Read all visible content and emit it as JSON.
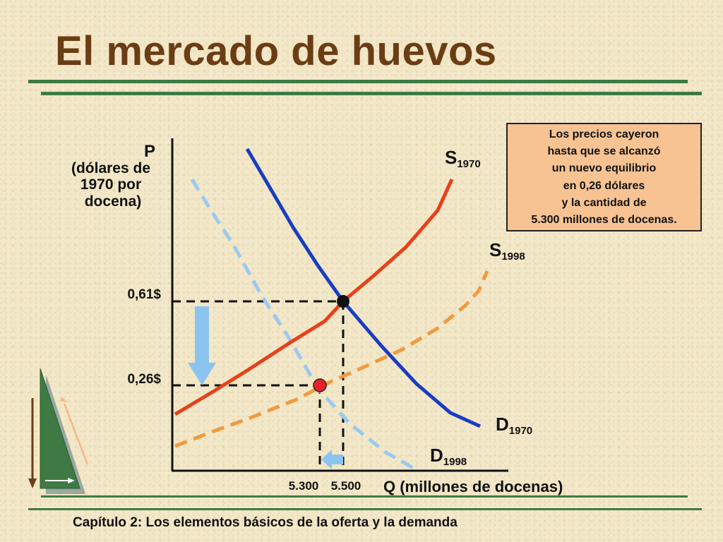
{
  "slide": {
    "title": "El mercado de huevos",
    "footer": "Capítulo 2: Los elementos básicos de la oferta y la demanda"
  },
  "diagram": {
    "y_axis": {
      "symbol": "P",
      "description_lines": [
        "(dólares de",
        "1970 por",
        "docena)"
      ]
    },
    "x_axis": {
      "label": "Q (millones de docenas)"
    },
    "price_ticks": [
      "0,61$",
      "0,26$"
    ],
    "quantity_ticks": [
      "5.300",
      "5.500"
    ],
    "curves": {
      "s1970": {
        "letter": "S",
        "sub": "1970"
      },
      "s1998": {
        "letter": "S",
        "sub": "1998"
      },
      "d1970": {
        "letter": "D",
        "sub": "1970"
      },
      "d1998": {
        "letter": "D",
        "sub": "1998"
      }
    },
    "callout_lines": [
      "Los precios cayeron",
      "hasta que se alcanzó",
      "un nuevo equilibrio",
      "en 0,26 dólares",
      "y la cantidad de",
      "5.300 millones de docenas."
    ]
  },
  "colors": {
    "title": "#6b3d14",
    "rule": "#3f7a44",
    "s1970": "#e8401a",
    "s1998": "#f29a3e",
    "d1970": "#1a3cc4",
    "d1998": "#9cc9f2",
    "arrow": "#8cc4f0",
    "callout_bg": "#f7c393",
    "old_equilibrium": "#111111",
    "new_equilibrium": "#e8222a"
  }
}
